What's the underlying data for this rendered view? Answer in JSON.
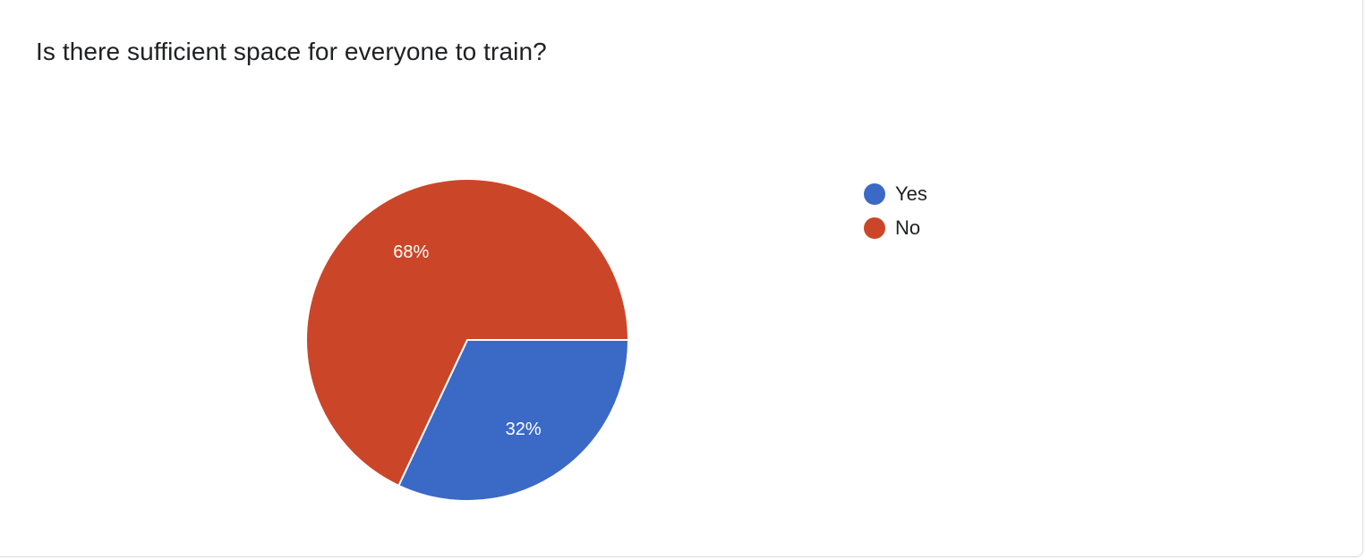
{
  "chart_data": {
    "type": "pie",
    "title": "Is there sufficient space for everyone to train?",
    "categories": [
      "Yes",
      "No"
    ],
    "values": [
      32,
      68
    ],
    "labels": [
      "32%",
      "68%"
    ],
    "colors": [
      "#3b69c6",
      "#cb4628"
    ],
    "legend_position": "right"
  }
}
